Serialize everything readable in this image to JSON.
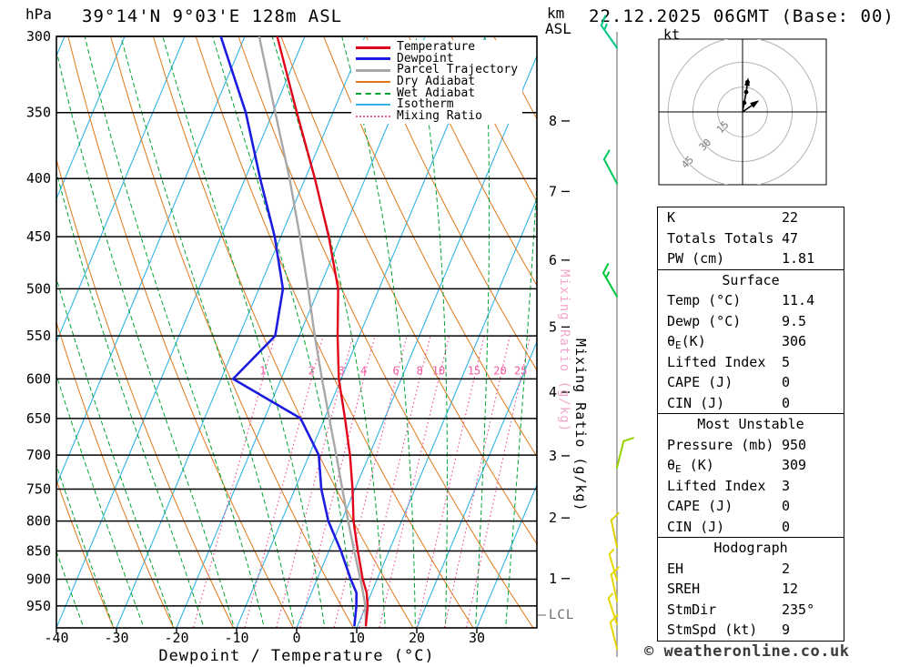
{
  "header": {
    "station_title": "39°14'N 9°03'E 128m ASL",
    "datetime_title": "22.12.2025 06GMT (Base: 00)"
  },
  "axes": {
    "pressure_unit": "hPa",
    "altitude_unit_line1": "km",
    "altitude_unit_line2": "ASL",
    "x_label": "Dewpoint / Temperature (°C)",
    "mixing_ratio_axis_label": "Mixing Ratio (g/kg)",
    "lcl_label": "LCL",
    "pressure_ticks_hpa": [
      300,
      350,
      400,
      450,
      500,
      550,
      600,
      650,
      700,
      750,
      800,
      850,
      900,
      950
    ],
    "temp_ticks_c": [
      -40,
      -30,
      -20,
      -10,
      0,
      10,
      20,
      30
    ],
    "km_ticks": [
      8,
      7,
      6,
      5,
      4,
      3,
      2,
      1
    ]
  },
  "legend": {
    "items": [
      {
        "label": "Temperature",
        "color": "#e10019",
        "style": "solid",
        "width": 3
      },
      {
        "label": "Dewpoint",
        "color": "#1c1ce1",
        "style": "solid",
        "width": 3
      },
      {
        "label": "Parcel Trajectory",
        "color": "#a8a8a8",
        "style": "solid",
        "width": 3
      },
      {
        "label": "Dry Adiabat",
        "color": "#e07818",
        "style": "solid",
        "width": 2
      },
      {
        "label": "Wet Adiabat",
        "color": "#00a432",
        "style": "dashed",
        "width": 2
      },
      {
        "label": "Isotherm",
        "color": "#32b4e6",
        "style": "solid",
        "width": 2
      },
      {
        "label": "Mixing Ratio",
        "color": "#f05aa0",
        "style": "dotted",
        "width": 2
      }
    ]
  },
  "chart_data": {
    "type": "skewt",
    "pressure_range_hpa": [
      300,
      1000
    ],
    "temp_axis_range_c": [
      -40,
      40
    ],
    "profile": {
      "pressure_hpa": [
        990,
        950,
        925,
        900,
        850,
        800,
        750,
        700,
        650,
        600,
        550,
        500,
        450,
        400,
        350,
        300
      ],
      "temperature_c": [
        11.4,
        10.3,
        9.2,
        7.6,
        4.8,
        2.0,
        -0.4,
        -3.2,
        -6.6,
        -10.4,
        -13.6,
        -16.8,
        -22.0,
        -28.4,
        -36.0,
        -44.6
      ],
      "dewpoint_c": [
        9.5,
        8.4,
        7.5,
        5.6,
        2.0,
        -2.2,
        -5.6,
        -8.4,
        -14.0,
        -28.0,
        -24.0,
        -26.0,
        -31.0,
        -37.5,
        -44.5,
        -54.0
      ],
      "parcel_c": [
        11.4,
        9.9,
        8.6,
        7.2,
        4.2,
        1.1,
        -2.1,
        -5.5,
        -9.2,
        -13.2,
        -17.4,
        -21.8,
        -26.8,
        -32.6,
        -39.6,
        -47.6
      ]
    },
    "mixing_ratio_lines_g_kg": [
      1,
      2,
      3,
      4,
      6,
      8,
      10,
      15,
      20,
      25
    ],
    "isotherm_step_c": 10,
    "dry_adiabat_step_c": 10,
    "wet_adiabat_step_c": 5,
    "colors": {
      "temperature": "#e10019",
      "dewpoint": "#1c1ce1",
      "parcel": "#a8a8a8",
      "dry_adiabat": "#e07818",
      "wet_adiabat": "#00a432",
      "isotherm": "#32b4e6",
      "mixing_ratio": "#f05aa0",
      "grid": "#000000"
    }
  },
  "wind_barbs": [
    {
      "pressure_hpa": 307,
      "speed_kt": 15,
      "tilt_deg": -35,
      "color": "#00c882"
    },
    {
      "pressure_hpa": 404,
      "speed_kt": 10,
      "tilt_deg": -28,
      "color": "#00c85a"
    },
    {
      "pressure_hpa": 508,
      "speed_kt": 15,
      "tilt_deg": -30,
      "color": "#00c83c"
    },
    {
      "pressure_hpa": 718,
      "speed_kt": 10,
      "tilt_deg": 14,
      "color": "#96d200"
    },
    {
      "pressure_hpa": 843,
      "speed_kt": 10,
      "tilt_deg": -12,
      "color": "#dcd200"
    },
    {
      "pressure_hpa": 902,
      "speed_kt": 5,
      "tilt_deg": -16,
      "color": "#e6d800"
    },
    {
      "pressure_hpa": 941,
      "speed_kt": 10,
      "tilt_deg": -12,
      "color": "#e6d800"
    },
    {
      "pressure_hpa": 986,
      "speed_kt": 5,
      "tilt_deg": -18,
      "color": "#e6d800"
    },
    {
      "pressure_hpa": 1036,
      "speed_kt": 10,
      "tilt_deg": -14,
      "color": "#e6d800"
    }
  ],
  "hodograph": {
    "unit_label": "kt",
    "ring_values_kt": [
      15,
      30,
      45
    ],
    "trace_u_kt": [
      0,
      1,
      2.2,
      3
    ],
    "trace_v_kt": [
      0,
      5.5,
      12,
      18
    ],
    "storm_dir_deg": 235,
    "storm_speed_kt": 9
  },
  "tables": [
    {
      "header": null,
      "rows": [
        {
          "label": "K",
          "value": "22"
        },
        {
          "label": "Totals Totals",
          "value": "47"
        },
        {
          "label": "PW (cm)",
          "value": "1.81"
        }
      ]
    },
    {
      "header": "Surface",
      "rows": [
        {
          "label": "Temp (°C)",
          "value": "11.4"
        },
        {
          "label": "Dewp (°C)",
          "value": "9.5"
        },
        {
          "label": {
            "pre": "θ",
            "sub": "E",
            "post": "(K)"
          },
          "value": "306"
        },
        {
          "label": "Lifted Index",
          "value": "5"
        },
        {
          "label": "CAPE (J)",
          "value": "0"
        },
        {
          "label": "CIN (J)",
          "value": "0"
        }
      ]
    },
    {
      "header": "Most Unstable",
      "rows": [
        {
          "label": "Pressure (mb)",
          "value": "950"
        },
        {
          "label": {
            "pre": "θ",
            "sub": "E",
            "post": " (K)"
          },
          "value": "309"
        },
        {
          "label": "Lifted Index",
          "value": "3"
        },
        {
          "label": "CAPE (J)",
          "value": "0"
        },
        {
          "label": "CIN (J)",
          "value": "0"
        }
      ]
    },
    {
      "header": "Hodograph",
      "rows": [
        {
          "label": "EH",
          "value": "2"
        },
        {
          "label": "SREH",
          "value": "12"
        },
        {
          "label": "StmDir",
          "value": "235°"
        },
        {
          "label": "StmSpd (kt)",
          "value": "9"
        }
      ]
    }
  ],
  "copyright": "© weatheronline.co.uk"
}
